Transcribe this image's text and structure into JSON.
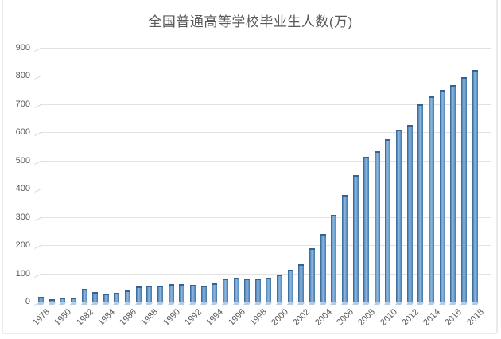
{
  "chart_data": {
    "type": "bar",
    "title": "全国普通高等学校毕业生人数(万)",
    "xlabel": "",
    "ylabel": "",
    "x": [
      1978,
      1979,
      1980,
      1981,
      1982,
      1983,
      1984,
      1985,
      1986,
      1987,
      1988,
      1989,
      1990,
      1991,
      1992,
      1993,
      1994,
      1995,
      1996,
      1997,
      1998,
      1999,
      2000,
      2001,
      2002,
      2003,
      2004,
      2005,
      2006,
      2007,
      2008,
      2009,
      2010,
      2011,
      2012,
      2013,
      2014,
      2015,
      2016,
      2017,
      2018
    ],
    "values": [
      16.5,
      8.5,
      14.7,
      14,
      45.7,
      33.5,
      28.7,
      31.6,
      39.3,
      53.2,
      55.4,
      57.6,
      61.4,
      61.4,
      60.4,
      57.1,
      63.7,
      80.5,
      83.9,
      82.9,
      83,
      84.8,
      95,
      114,
      133.7,
      187.7,
      239.1,
      306.8,
      377.5,
      447.8,
      512,
      531.1,
      575.4,
      608.2,
      624.7,
      699,
      727,
      749,
      765,
      795,
      820
    ],
    "xtick_labels": [
      "1978",
      "1980",
      "1982",
      "1984",
      "1986",
      "1988",
      "1990",
      "1992",
      "1994",
      "1996",
      "1998",
      "2000",
      "2002",
      "2004",
      "2006",
      "2008",
      "2010",
      "2012",
      "2014",
      "2016",
      "2018"
    ],
    "yticks": [
      0,
      100,
      200,
      300,
      400,
      500,
      600,
      700,
      800,
      900
    ],
    "ylim": [
      0,
      900
    ],
    "grid": true,
    "legend_position": "none",
    "bar_color": "#5b8fc0",
    "bar_edge_color": "#336293",
    "gridline_color": "#e2e2e2",
    "text_color": "#595959"
  }
}
